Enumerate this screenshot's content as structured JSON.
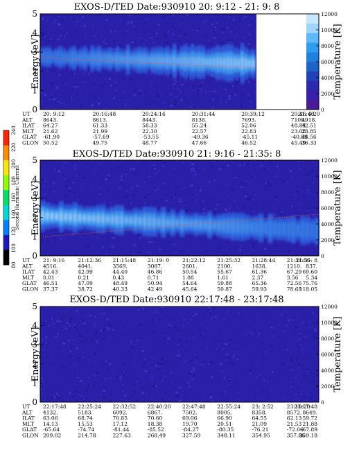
{
  "colors": {
    "background_field": "#2a1fa8",
    "noise_light": "#4838d8",
    "noise_dark": "#1e168c",
    "hot_band": "#e0f0ff",
    "warm_band": "#49b9f8",
    "mid_band": "#2f6ee8",
    "temperature_trace": "#ff5030"
  },
  "colorbar": {
    "title": "Second Harmonic Current",
    "ticks": [
      "240",
      "220",
      "200",
      "180",
      "160",
      "140",
      "120",
      "100",
      "80"
    ],
    "colors": [
      "#ff2000",
      "#ff8a00",
      "#ffe600",
      "#8cff00",
      "#00e060",
      "#00d8d8",
      "#0080ff",
      "#1c18c0",
      "#000000"
    ]
  },
  "panels": [
    {
      "title": "EXOS-D/TED   Date:930910  20: 9:12 - 21: 9: 8",
      "data_end_fraction": 0.77,
      "ephemeris": [
        {
          "label": "UT",
          "values": [
            "20: 9:12",
            "20:16:48",
            "20:24:16",
            "20:31:44",
            "20:39:12",
            "20:46:40",
            "21: 6:20"
          ]
        },
        {
          "label": "ALT",
          "values": [
            "8643.",
            "8613.",
            "8443.",
            "8138.",
            "7693.",
            "7109.",
            "4918."
          ]
        },
        {
          "label": "ILAT",
          "values": [
            "64.27",
            "61.33",
            "58.33",
            "55.24",
            "52.06",
            "48.84",
            "42.51"
          ]
        },
        {
          "label": "MLT",
          "values": [
            "21.62",
            "21.99",
            "22.30",
            "22.57",
            "22.83",
            "23.08",
            "23.85"
          ]
        },
        {
          "label": "GLAT",
          "values": [
            "-61.90",
            "-57.69",
            "-53.55",
            "-49.36",
            "-45.11",
            "-40.89",
            "46.56"
          ]
        },
        {
          "label": "GLON",
          "values": [
            "50.52",
            "49.75",
            "48.77",
            "47.66",
            "46.52",
            "45.49",
            "36.33"
          ]
        }
      ]
    },
    {
      "title": "EXOS-D/TED   Date:930910  21: 9:16 - 21:35: 8",
      "data_end_fraction": 1.0,
      "ephemeris": [
        {
          "label": "UT",
          "values": [
            "21: 9:16",
            "21:12:36",
            "21:15:48",
            "21:19: 0",
            "21:22:12",
            "21:25:32",
            "21:28:44",
            "21:31:56",
            "21:35: 8"
          ]
        },
        {
          "label": "ALT",
          "values": [
            "4516.",
            "4041.",
            "3569.",
            "3087.",
            "2601.",
            "2100.",
            "1638.",
            "1210.",
            "837."
          ]
        },
        {
          "label": "ILAT",
          "values": [
            "42.43",
            "42.99",
            "44.40",
            "46.86",
            "50.54",
            "55.67",
            "61.36",
            "67.29",
            "69.60"
          ]
        },
        {
          "label": "MLT",
          "values": [
            "0.01",
            "0.21",
            "0.43",
            "0.71",
            "1.08",
            "1.61",
            "2.37",
            "3.56",
            "5.34"
          ]
        },
        {
          "label": "GLAT",
          "values": [
            "46.51",
            "47.09",
            "48.49",
            "50.94",
            "54.64",
            "59.88",
            "65.36",
            "72.56",
            "75.76"
          ]
        },
        {
          "label": "GLON",
          "values": [
            "37.37",
            "38.72",
            "40.33",
            "42.49",
            "45.64",
            "50.87",
            "59.93",
            "78.69",
            "118.05"
          ]
        }
      ]
    },
    {
      "title": "EXOS-D/TED   Date:930910  22:17:48 - 23:17:48",
      "data_end_fraction": 1.0,
      "ephemeris": [
        {
          "label": "UT",
          "values": [
            "22:17:48",
            "22:25:24",
            "22:32:52",
            "22:40:20",
            "22:47:48",
            "22:55:24",
            "23: 2:52",
            "23:10:20",
            "23:17:48"
          ]
        },
        {
          "label": "ALT",
          "values": [
            "4132.",
            "5183.",
            "6092.",
            "6867.",
            "7502.",
            "8005.",
            "8358.",
            "8572.",
            "8649."
          ]
        },
        {
          "label": "ILAT",
          "values": [
            "63.06",
            "68.74",
            "70.85",
            "70.60",
            "69.06",
            "66.90",
            "64.55",
            "62.13",
            "59.72"
          ]
        },
        {
          "label": "MLT",
          "values": [
            "14.13",
            "15.53",
            "17.12",
            "18.38",
            "19.70",
            "20.51",
            "21.09",
            "21.53",
            "21.88"
          ]
        },
        {
          "label": "GLAT",
          "values": [
            "-65.64",
            "-74.74",
            "-81.44",
            "-85.52",
            "-84.27",
            "-80.35",
            "-76.21",
            "-72.06",
            "-67.89"
          ]
        },
        {
          "label": "GLON",
          "values": [
            "209.02",
            "214.78",
            "227.63",
            "268.49",
            "327.59",
            "348.11",
            "354.95",
            "357.86",
            "359.18"
          ]
        }
      ]
    }
  ],
  "chart_data": [
    {
      "type": "heatmap",
      "title": "EXOS-D/TED   Date:930910  20: 9:12 - 21: 9: 8",
      "xlabel": "",
      "ylabel": "Energy [eV]",
      "ylabel_right": "Temperature [K]",
      "ylim": [
        0,
        5
      ],
      "yticks": [
        "0",
        "1",
        "2",
        "3",
        "4",
        "5"
      ],
      "ylim_right": [
        0,
        12000
      ],
      "yticks_right": [
        "0",
        "2000",
        "4000",
        "6000",
        "8000",
        "10000",
        "12000"
      ],
      "band": {
        "center_start": 2.75,
        "center_end": 2.4,
        "width_start": 0.45,
        "width_end": 0.9,
        "peak_start": 0.35,
        "peak_end": 0.95
      },
      "temperature_trace": {
        "start": 6500,
        "end": 5200
      },
      "colorbar": "right"
    },
    {
      "type": "heatmap",
      "title": "EXOS-D/TED   Date:930910  21: 9:16 - 21:35: 8",
      "xlabel": "",
      "ylabel": "Energy [eV]",
      "ylabel_right": "Temperature [K]",
      "ylim": [
        0,
        5
      ],
      "yticks": [
        "0",
        "1",
        "2",
        "3",
        "4",
        "5"
      ],
      "ylim_right": [
        0,
        12000
      ],
      "yticks_right": [
        "0",
        "2000",
        "4000",
        "6000",
        "8000",
        "10000",
        "12000"
      ],
      "band": {
        "center_start": 2.1,
        "center_end": 1.3,
        "width_start": 0.7,
        "width_end": 0.6,
        "peak_start": 0.95,
        "peak_end": 0.3
      },
      "temperature_trace": {
        "start": 2400,
        "end": 5200
      }
    },
    {
      "type": "heatmap",
      "title": "EXOS-D/TED   Date:930910  22:17:48 - 23:17:48",
      "xlabel": "",
      "ylabel": "Energy [eV]",
      "ylabel_right": "Temperature [K]",
      "ylim": [
        0,
        5
      ],
      "yticks": [
        "0",
        "1",
        "2",
        "3",
        "4",
        "5"
      ],
      "ylim_right": [
        0,
        12000
      ],
      "yticks_right": [
        "0",
        "2000",
        "4000",
        "6000",
        "8000",
        "10000",
        "12000"
      ],
      "band": null,
      "temperature_trace": null
    }
  ]
}
